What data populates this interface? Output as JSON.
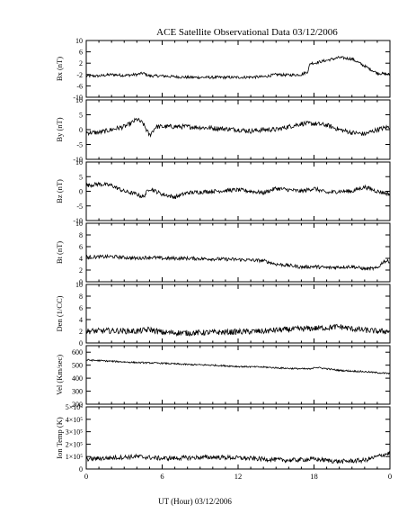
{
  "chart_data": {
    "type": "line",
    "title": "ACE Satellite Observational Data   03/12/2006",
    "xlabel": "UT (Hour)   03/12/2006",
    "x_ticks": [
      "0",
      "6",
      "12",
      "18",
      "0"
    ],
    "xlim": [
      0,
      24
    ],
    "panels": [
      {
        "ylabel": "Bx (nT)",
        "ylim": [
          -10,
          10
        ],
        "ticks": [
          {
            "v": 10,
            "label": "10"
          },
          {
            "v": 6,
            "label": "6"
          },
          {
            "v": 2,
            "label": "2"
          },
          {
            "v": -2,
            "label": "-2"
          },
          {
            "v": -6,
            "label": "-6"
          },
          {
            "v": -10,
            "label": "-10"
          }
        ],
        "noise": 0.5,
        "series": {
          "x": [
            0,
            1,
            2,
            3,
            4,
            4.5,
            5,
            6,
            8,
            10,
            12,
            14,
            15,
            16,
            17,
            17.5,
            17.7,
            18,
            19,
            20,
            21,
            22,
            23,
            24
          ],
          "y": [
            -2.5,
            -2.5,
            -2,
            -2.3,
            -2,
            -1.5,
            -2.5,
            -2.5,
            -3,
            -3,
            -3,
            -2.8,
            -2,
            -2.2,
            -2,
            -1,
            2,
            2,
            3,
            4,
            3.5,
            1,
            -1.5,
            -2
          ]
        }
      },
      {
        "ylabel": "By (nT)",
        "ylim": [
          -10,
          10
        ],
        "ticks": [
          {
            "v": 10,
            "label": "10"
          },
          {
            "v": 5,
            "label": "5"
          },
          {
            "v": 0,
            "label": "0"
          },
          {
            "v": -5,
            "label": "-5"
          },
          {
            "v": -10,
            "label": "-10"
          }
        ],
        "noise": 0.8,
        "series": {
          "x": [
            0,
            1,
            2,
            3,
            3.5,
            4,
            4.5,
            5,
            5.5,
            6,
            8,
            10,
            12,
            13,
            14,
            15,
            16,
            17,
            18,
            19,
            20,
            21,
            22,
            23,
            24
          ],
          "y": [
            -1,
            -1,
            0,
            1,
            2,
            3.5,
            2,
            -2,
            1,
            1,
            1,
            0.5,
            0,
            -0.5,
            0,
            0,
            1,
            2,
            2,
            1.5,
            0,
            -1,
            -1.5,
            0,
            1
          ]
        }
      },
      {
        "ylabel": "Bz (nT)",
        "ylim": [
          -10,
          10
        ],
        "ticks": [
          {
            "v": 10,
            "label": "10"
          },
          {
            "v": 5,
            "label": "5"
          },
          {
            "v": 0,
            "label": "0"
          },
          {
            "v": -5,
            "label": "-5"
          },
          {
            "v": -10,
            "label": "-10"
          }
        ],
        "noise": 0.7,
        "series": {
          "x": [
            0,
            1,
            2,
            3,
            4,
            4.5,
            5,
            6,
            7,
            8,
            10,
            12,
            14,
            15,
            16,
            17,
            18,
            19,
            20,
            21,
            22,
            23,
            24
          ],
          "y": [
            2,
            2.5,
            2,
            0,
            -1,
            -2,
            1,
            -1,
            -2,
            -0.5,
            0,
            0.5,
            -0.5,
            1,
            0.5,
            0,
            1,
            -0.5,
            0,
            0,
            1.5,
            0,
            -1
          ]
        }
      },
      {
        "ylabel": "Bt (nT)",
        "ylim": [
          0,
          10
        ],
        "ticks": [
          {
            "v": 10,
            "label": "10"
          },
          {
            "v": 8,
            "label": "8"
          },
          {
            "v": 6,
            "label": "6"
          },
          {
            "v": 4,
            "label": "4"
          },
          {
            "v": 2,
            "label": "2"
          },
          {
            "v": 0,
            "label": "0"
          }
        ],
        "noise": 0.3,
        "series": {
          "x": [
            0,
            2,
            4,
            5,
            6,
            8,
            10,
            12,
            14,
            15,
            16,
            17,
            18,
            19,
            20,
            21,
            22,
            23,
            23.5,
            24
          ],
          "y": [
            4.2,
            4.3,
            4,
            4.2,
            4,
            4,
            3.9,
            3.8,
            3.6,
            3,
            2.8,
            2.5,
            2.6,
            2.4,
            2.5,
            2.6,
            2.2,
            2.3,
            3.5,
            3.5
          ]
        }
      },
      {
        "ylabel": "Den (1/CC)",
        "ylim": [
          0,
          10
        ],
        "ticks": [
          {
            "v": 10,
            "label": "10"
          },
          {
            "v": 8,
            "label": "8"
          },
          {
            "v": 6,
            "label": "6"
          },
          {
            "v": 4,
            "label": "4"
          },
          {
            "v": 2,
            "label": "2"
          },
          {
            "v": 0,
            "label": "0"
          }
        ],
        "noise": 0.5,
        "series": {
          "x": [
            0,
            2,
            4,
            5,
            6,
            8,
            10,
            12,
            14,
            15,
            16,
            18,
            19,
            20,
            21,
            22,
            23,
            24
          ],
          "y": [
            2,
            2.1,
            2,
            2.3,
            1.8,
            1.7,
            1.8,
            1.9,
            2,
            2.2,
            2.3,
            2.5,
            2.6,
            2.8,
            2.4,
            2.2,
            2,
            2
          ]
        }
      },
      {
        "ylabel": "Vel (Km/sec)",
        "ylim": [
          200,
          650
        ],
        "ticks": [
          {
            "v": 600,
            "label": "600"
          },
          {
            "v": 500,
            "label": "500"
          },
          {
            "v": 400,
            "label": "400"
          },
          {
            "v": 300,
            "label": "300"
          },
          {
            "v": 200,
            "label": "200"
          }
        ],
        "noise": 6,
        "series": {
          "x": [
            0,
            2,
            4,
            6,
            8,
            10,
            12,
            14,
            16,
            17.8,
            18,
            20,
            22,
            24
          ],
          "y": [
            540,
            530,
            520,
            515,
            505,
            500,
            490,
            485,
            475,
            470,
            485,
            460,
            450,
            435
          ]
        }
      },
      {
        "ylabel": "Ion Temp (K)",
        "ylim": [
          0,
          500000
        ],
        "ticks": [
          {
            "v": 500000,
            "label": "5×10⁵"
          },
          {
            "v": 400000,
            "label": "4×10⁵"
          },
          {
            "v": 300000,
            "label": "3×10⁵"
          },
          {
            "v": 200000,
            "label": "2×10⁵"
          },
          {
            "v": 100000,
            "label": "1×10⁵"
          },
          {
            "v": 0,
            "label": "0"
          }
        ],
        "noise": 18000,
        "series": {
          "x": [
            0,
            2,
            4,
            6,
            8,
            10,
            12,
            14,
            16,
            18,
            20,
            22,
            23,
            24
          ],
          "y": [
            80000,
            90000,
            100000,
            85000,
            90000,
            95000,
            90000,
            80000,
            70000,
            80000,
            60000,
            70000,
            100000,
            130000
          ]
        }
      }
    ]
  }
}
